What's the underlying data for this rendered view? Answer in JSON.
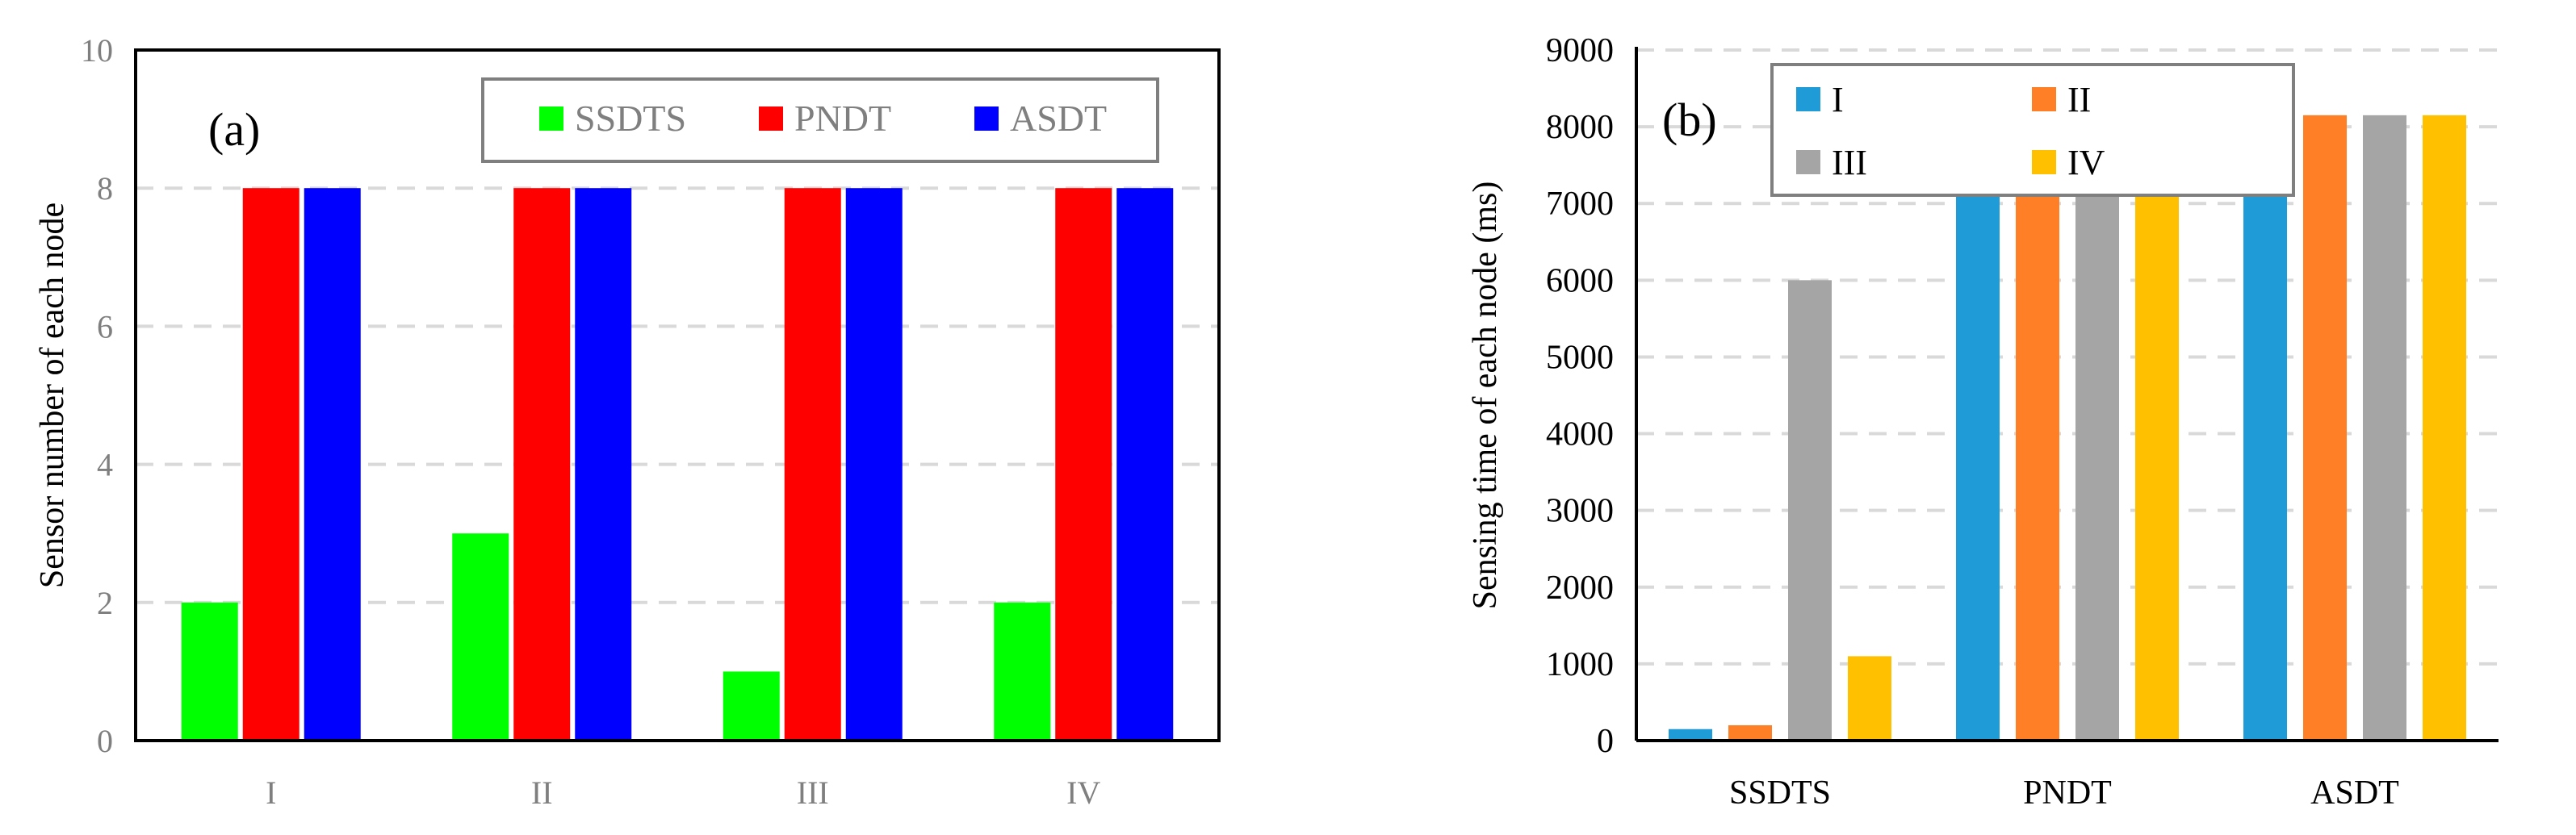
{
  "chart_data": [
    {
      "type": "bar",
      "panel_label": "(a)",
      "ylabel": "Sensor number of each node",
      "categories": [
        "I",
        "II",
        "III",
        "IV"
      ],
      "ylim": [
        0,
        10
      ],
      "yticks": [
        "0",
        "2",
        "4",
        "6",
        "8",
        "10"
      ],
      "grid": true,
      "legend_position": "top-right",
      "series": [
        {
          "name": "SSDTS",
          "color": "#00ff00",
          "values": [
            2,
            3,
            1,
            2
          ]
        },
        {
          "name": "PNDT",
          "color": "#ff0000",
          "values": [
            8,
            8,
            8,
            8
          ]
        },
        {
          "name": "ASDT",
          "color": "#0000ff",
          "values": [
            8,
            8,
            8,
            8
          ]
        }
      ]
    },
    {
      "type": "bar",
      "panel_label": "(b)",
      "ylabel": "Sensing time of each node (ms)",
      "categories": [
        "SSDTS",
        "PNDT",
        "ASDT"
      ],
      "ylim": [
        0,
        9000
      ],
      "yticks": [
        "0",
        "1000",
        "2000",
        "3000",
        "4000",
        "5000",
        "6000",
        "7000",
        "8000",
        "9000"
      ],
      "grid": true,
      "legend_position": "top-left",
      "series": [
        {
          "name": "I",
          "color": "#1f9bd7",
          "values": [
            150,
            8150,
            8150
          ]
        },
        {
          "name": "II",
          "color": "#ff7f27",
          "values": [
            200,
            8150,
            8150
          ]
        },
        {
          "name": "III",
          "color": "#a5a5a5",
          "values": [
            6000,
            8150,
            8150
          ]
        },
        {
          "name": "IV",
          "color": "#ffc000",
          "values": [
            1100,
            8150,
            8150
          ]
        }
      ]
    }
  ]
}
